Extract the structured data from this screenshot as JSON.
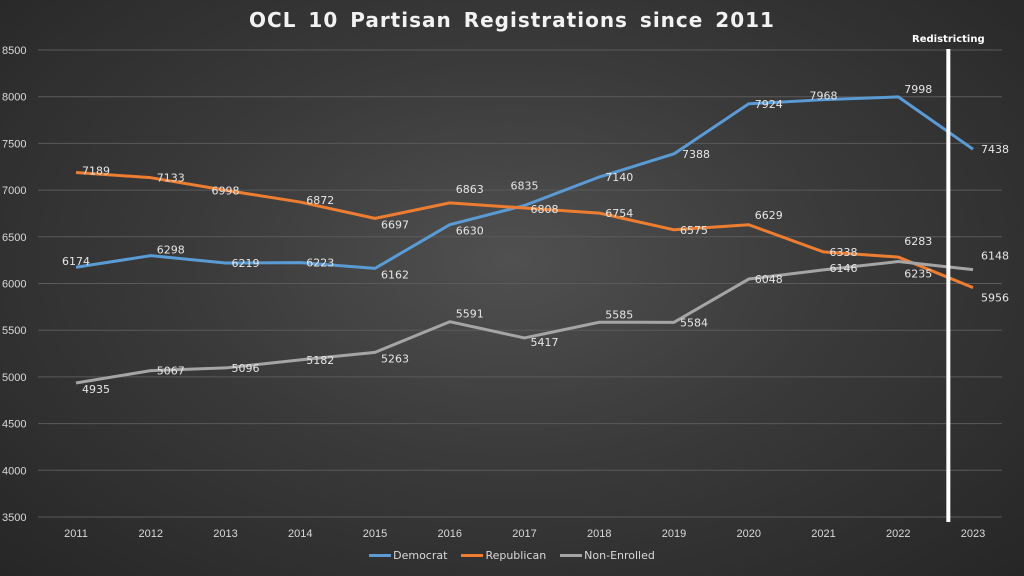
{
  "chart_data": {
    "type": "line",
    "title": "OCL 10 Partisan Registrations since 2011",
    "xlabel": "",
    "ylabel": "",
    "x": [
      "2011",
      "2012",
      "2013",
      "2014",
      "2015",
      "2016",
      "2017",
      "2018",
      "2019",
      "2020",
      "2021",
      "2022",
      "2023"
    ],
    "ylim": [
      3500,
      8500
    ],
    "yticks": [
      3500,
      4000,
      4500,
      5000,
      5500,
      6000,
      6500,
      7000,
      7500,
      8000,
      8500
    ],
    "grid": true,
    "legend_position": "bottom",
    "series": [
      {
        "name": "Democrat",
        "color": "#5b9bd5",
        "values": [
          6174,
          6298,
          6219,
          6223,
          6162,
          6630,
          6835,
          7140,
          7388,
          7924,
          7968,
          7998,
          7438
        ]
      },
      {
        "name": "Republican",
        "color": "#ed7d31",
        "values": [
          7189,
          7133,
          6998,
          6872,
          6697,
          6863,
          6808,
          6754,
          6575,
          6629,
          6338,
          6283,
          5956
        ]
      },
      {
        "name": "Non-Enrolled",
        "color": "#a5a5a5",
        "values": [
          4935,
          5067,
          5096,
          5182,
          5263,
          5591,
          5417,
          5585,
          5584,
          6048,
          6146,
          6235,
          6148
        ]
      }
    ],
    "annotations": [
      {
        "text": "Redistricting",
        "type": "vertical-line",
        "between": [
          "2022",
          "2023"
        ],
        "position_fraction": 0.67,
        "color": "#ffffff"
      }
    ]
  }
}
